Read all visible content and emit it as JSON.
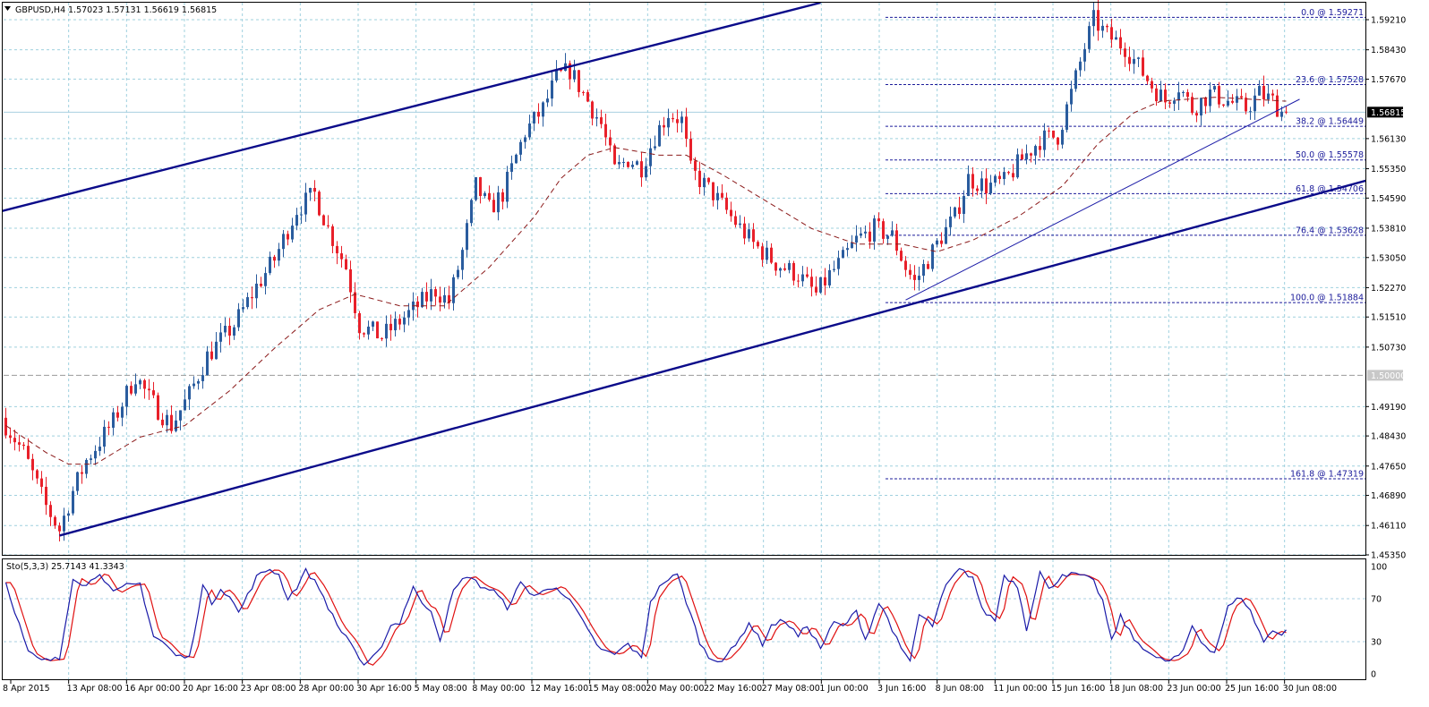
{
  "header": {
    "symbol": "GBPUSD,H4",
    "ohlc": "1.57023 1.57131 1.56619 1.56815"
  },
  "chart_data": {
    "type": "candlestick",
    "symbol": "GBPUSD",
    "timeframe": "H4",
    "ylim": [
      1.4535,
      1.5965
    ],
    "y_ticks": [
      "1.59210",
      "1.58430",
      "1.57670",
      "1.56130",
      "1.55350",
      "1.54590",
      "1.53810",
      "1.53050",
      "1.52270",
      "1.51510",
      "1.50730",
      "1.49190",
      "1.48430",
      "1.47650",
      "1.46890",
      "1.46110",
      "1.45350"
    ],
    "x_ticks": [
      "8 Apr 2015",
      "13 Apr 08:00",
      "16 Apr 00:00",
      "20 Apr 16:00",
      "23 Apr 08:00",
      "28 Apr 00:00",
      "30 Apr 16:00",
      "5 May 08:00",
      "8 May 00:00",
      "12 May 16:00",
      "15 May 08:00",
      "20 May 00:00",
      "22 May 16:00",
      "27 May 08:00",
      "1 Jun 00:00",
      "3 Jun 16:00",
      "8 Jun 08:00",
      "11 Jun 00:00",
      "15 Jun 16:00",
      "18 Jun 08:00",
      "23 Jun 00:00",
      "25 Jun 16:00",
      "30 Jun 08:00"
    ],
    "current_price": "1.56815",
    "level_1_5": "1.50000",
    "fibonacci": [
      {
        "label": "0.0 @ 1.59271",
        "price": 1.59271
      },
      {
        "label": "23.6 @ 1.57528",
        "price": 1.57528
      },
      {
        "label": "38.2 @ 1.56449",
        "price": 1.56449
      },
      {
        "label": "50.0 @ 1.55578",
        "price": 1.55578
      },
      {
        "label": "61.8 @ 1.54706",
        "price": 1.54706
      },
      {
        "label": "76.4 @ 1.53628",
        "price": 1.53628
      },
      {
        "label": "100.0 @ 1.51884",
        "price": 1.51884
      },
      {
        "label": "161.8 @ 1.47319",
        "price": 1.47319
      }
    ],
    "price_anchors": [
      [
        0,
        1.489
      ],
      [
        5,
        1.48
      ],
      [
        10,
        1.466
      ],
      [
        13,
        1.46
      ],
      [
        16,
        1.47
      ],
      [
        19,
        1.478
      ],
      [
        25,
        1.488
      ],
      [
        30,
        1.5
      ],
      [
        33,
        1.494
      ],
      [
        38,
        1.487
      ],
      [
        42,
        1.495
      ],
      [
        46,
        1.505
      ],
      [
        52,
        1.513
      ],
      [
        57,
        1.523
      ],
      [
        61,
        1.53
      ],
      [
        66,
        1.543
      ],
      [
        70,
        1.547
      ],
      [
        73,
        1.538
      ],
      [
        77,
        1.528
      ],
      [
        80,
        1.513
      ],
      [
        85,
        1.51
      ],
      [
        89,
        1.514
      ],
      [
        93,
        1.518
      ],
      [
        97,
        1.522
      ],
      [
        100,
        1.519
      ],
      [
        103,
        1.532
      ],
      [
        106,
        1.549
      ],
      [
        109,
        1.543
      ],
      [
        112,
        1.547
      ],
      [
        117,
        1.563
      ],
      [
        121,
        1.569
      ],
      [
        124,
        1.577
      ],
      [
        127,
        1.579
      ],
      [
        130,
        1.573
      ],
      [
        134,
        1.565
      ],
      [
        137,
        1.553
      ],
      [
        140,
        1.556
      ],
      [
        143,
        1.554
      ],
      [
        146,
        1.562
      ],
      [
        149,
        1.568
      ],
      [
        152,
        1.566
      ],
      [
        154,
        1.553
      ],
      [
        159,
        1.547
      ],
      [
        163,
        1.541
      ],
      [
        168,
        1.534
      ],
      [
        173,
        1.529
      ],
      [
        178,
        1.526
      ],
      [
        182,
        1.521
      ],
      [
        185,
        1.526
      ],
      [
        188,
        1.53
      ],
      [
        191,
        1.535
      ],
      [
        195,
        1.538
      ],
      [
        199,
        1.536
      ],
      [
        202,
        1.528
      ],
      [
        204,
        1.524
      ],
      [
        207,
        1.53
      ],
      [
        210,
        1.536
      ],
      [
        213,
        1.541
      ],
      [
        216,
        1.551
      ],
      [
        220,
        1.549
      ],
      [
        224,
        1.55
      ],
      [
        228,
        1.556
      ],
      [
        232,
        1.561
      ],
      [
        236,
        1.562
      ],
      [
        239,
        1.573
      ],
      [
        242,
        1.585
      ],
      [
        244,
        1.592
      ],
      [
        247,
        1.588
      ],
      [
        251,
        1.585
      ],
      [
        254,
        1.58
      ],
      [
        257,
        1.575
      ],
      [
        260,
        1.571
      ],
      [
        263,
        1.575
      ],
      [
        266,
        1.569
      ],
      [
        270,
        1.573
      ],
      [
        274,
        1.571
      ],
      [
        278,
        1.569
      ],
      [
        281,
        1.573
      ],
      [
        284,
        1.571
      ],
      [
        286,
        1.5682
      ]
    ],
    "ma_anchors": [
      [
        0,
        1.487
      ],
      [
        9,
        1.48
      ],
      [
        14,
        1.477
      ],
      [
        20,
        1.477
      ],
      [
        30,
        1.484
      ],
      [
        40,
        1.487
      ],
      [
        50,
        1.496
      ],
      [
        60,
        1.507
      ],
      [
        70,
        1.517
      ],
      [
        78,
        1.521
      ],
      [
        88,
        1.518
      ],
      [
        98,
        1.518
      ],
      [
        108,
        1.528
      ],
      [
        118,
        1.541
      ],
      [
        124,
        1.551
      ],
      [
        130,
        1.557
      ],
      [
        136,
        1.559
      ],
      [
        146,
        1.557
      ],
      [
        152,
        1.557
      ],
      [
        160,
        1.552
      ],
      [
        170,
        1.545
      ],
      [
        180,
        1.538
      ],
      [
        190,
        1.534
      ],
      [
        200,
        1.534
      ],
      [
        208,
        1.532
      ],
      [
        216,
        1.535
      ],
      [
        226,
        1.541
      ],
      [
        236,
        1.549
      ],
      [
        244,
        1.56
      ],
      [
        252,
        1.568
      ],
      [
        258,
        1.571
      ],
      [
        270,
        1.572
      ],
      [
        286,
        1.571
      ]
    ],
    "channel_upper": [
      [
        -1,
        1.5425
      ],
      [
        182,
        1.5965
      ]
    ],
    "channel_lower": [
      [
        12,
        1.4585
      ],
      [
        320,
        1.5555
      ]
    ],
    "trendline": [
      [
        201,
        1.5195
      ],
      [
        289,
        1.5715
      ]
    ],
    "stochastic": {
      "label": "Sto(5,3,3) 25.7143 41.3343",
      "ylim": [
        0,
        100
      ],
      "y_ticks": [
        "100",
        "70",
        "30",
        "0"
      ],
      "main_anchors": [
        [
          0,
          85
        ],
        [
          5,
          20
        ],
        [
          8,
          12
        ],
        [
          12,
          14
        ],
        [
          15,
          90
        ],
        [
          18,
          82
        ],
        [
          21,
          95
        ],
        [
          24,
          75
        ],
        [
          27,
          82
        ],
        [
          30,
          84
        ],
        [
          33,
          35
        ],
        [
          35,
          30
        ],
        [
          38,
          17
        ],
        [
          41,
          15
        ],
        [
          44,
          82
        ],
        [
          46,
          66
        ],
        [
          48,
          80
        ],
        [
          50,
          72
        ],
        [
          52,
          57
        ],
        [
          54,
          73
        ],
        [
          56,
          90
        ],
        [
          59,
          98
        ],
        [
          61,
          92
        ],
        [
          63,
          70
        ],
        [
          65,
          81
        ],
        [
          67,
          97
        ],
        [
          70,
          80
        ],
        [
          74,
          45
        ],
        [
          77,
          30
        ],
        [
          80,
          6
        ],
        [
          83,
          19
        ],
        [
          86,
          45
        ],
        [
          88,
          48
        ],
        [
          91,
          82
        ],
        [
          93,
          64
        ],
        [
          95,
          60
        ],
        [
          97,
          32
        ],
        [
          100,
          77
        ],
        [
          103,
          92
        ],
        [
          106,
          82
        ],
        [
          109,
          77
        ],
        [
          112,
          62
        ],
        [
          115,
          84
        ],
        [
          118,
          73
        ],
        [
          121,
          78
        ],
        [
          123,
          82
        ],
        [
          127,
          62
        ],
        [
          130,
          40
        ],
        [
          133,
          22
        ],
        [
          136,
          18
        ],
        [
          139,
          28
        ],
        [
          142,
          14
        ],
        [
          144,
          68
        ],
        [
          147,
          86
        ],
        [
          150,
          92
        ],
        [
          153,
          55
        ],
        [
          155,
          30
        ],
        [
          157,
          15
        ],
        [
          160,
          13
        ],
        [
          163,
          26
        ],
        [
          166,
          48
        ],
        [
          169,
          28
        ],
        [
          171,
          45
        ],
        [
          174,
          50
        ],
        [
          177,
          35
        ],
        [
          179,
          45
        ],
        [
          182,
          24
        ],
        [
          185,
          48
        ],
        [
          187,
          44
        ],
        [
          190,
          58
        ],
        [
          192,
          32
        ],
        [
          195,
          66
        ],
        [
          197,
          52
        ],
        [
          200,
          22
        ],
        [
          202,
          12
        ],
        [
          204,
          55
        ],
        [
          207,
          45
        ],
        [
          210,
          82
        ],
        [
          213,
          97
        ],
        [
          216,
          90
        ],
        [
          218,
          60
        ],
        [
          221,
          50
        ],
        [
          223,
          92
        ],
        [
          226,
          82
        ],
        [
          228,
          42
        ],
        [
          231,
          95
        ],
        [
          233,
          78
        ],
        [
          236,
          93
        ],
        [
          240,
          92
        ],
        [
          243,
          86
        ],
        [
          245,
          68
        ],
        [
          247,
          30
        ],
        [
          249,
          54
        ],
        [
          252,
          32
        ],
        [
          255,
          22
        ],
        [
          257,
          14
        ],
        [
          260,
          12
        ],
        [
          263,
          20
        ],
        [
          265,
          45
        ],
        [
          267,
          30
        ],
        [
          270,
          20
        ],
        [
          273,
          62
        ],
        [
          276,
          72
        ],
        [
          278,
          58
        ],
        [
          281,
          30
        ],
        [
          283,
          40
        ],
        [
          285,
          38
        ],
        [
          287,
          45
        ],
        [
          289,
          50
        ],
        [
          291,
          42
        ],
        [
          292,
          26
        ]
      ],
      "signal_lag": 1.5
    }
  }
}
